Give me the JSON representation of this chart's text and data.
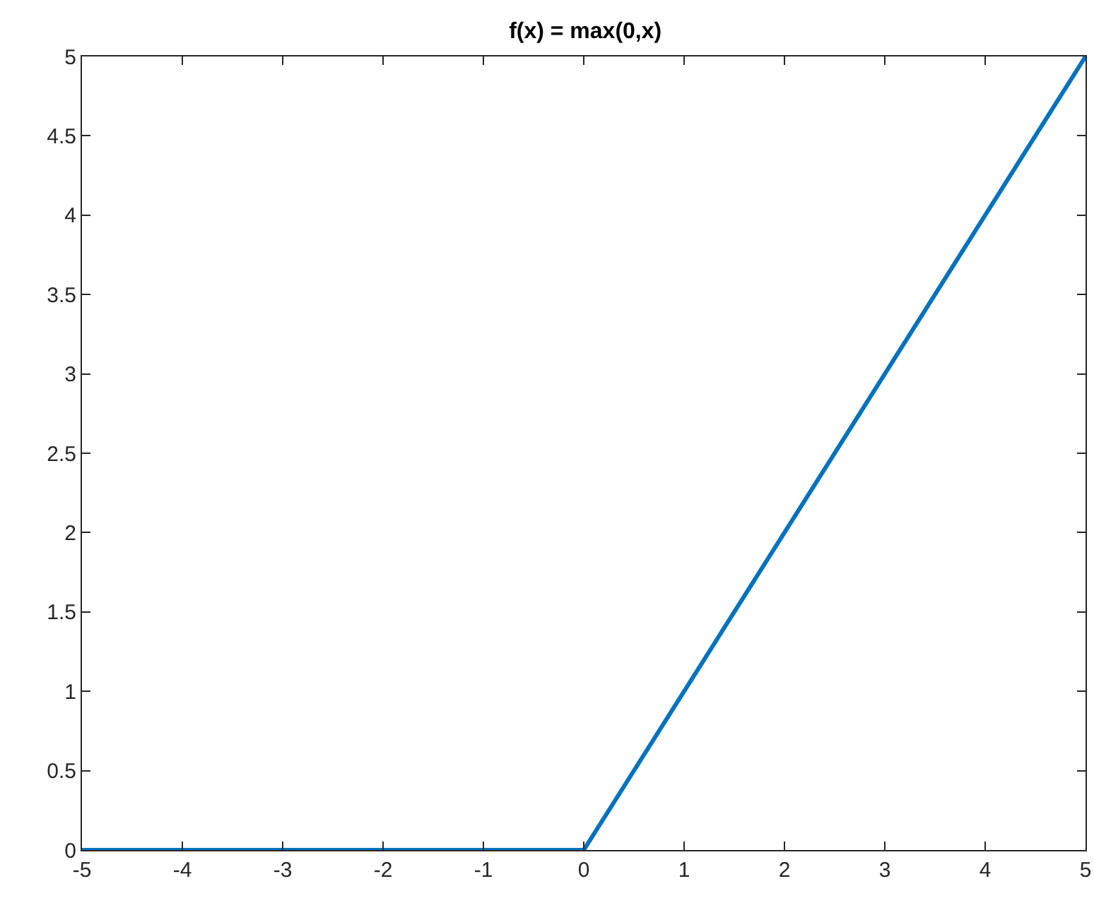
{
  "chart_data": {
    "type": "line",
    "title": "f(x) = max(0,x)",
    "x": [
      -5,
      0,
      5
    ],
    "series": [
      {
        "color": "#0072bd",
        "values": [
          0,
          0,
          5
        ]
      }
    ],
    "xlim": [
      -5,
      5
    ],
    "xticks": [
      -5,
      -4,
      -3,
      -2,
      -1,
      0,
      1,
      2,
      3,
      4,
      5
    ],
    "ylim": [
      0,
      5
    ],
    "yticks": [
      0,
      0.5,
      1,
      1.5,
      2,
      2.5,
      3,
      3.5,
      4,
      4.5,
      5
    ],
    "marker": "none",
    "line_style": "solid"
  }
}
